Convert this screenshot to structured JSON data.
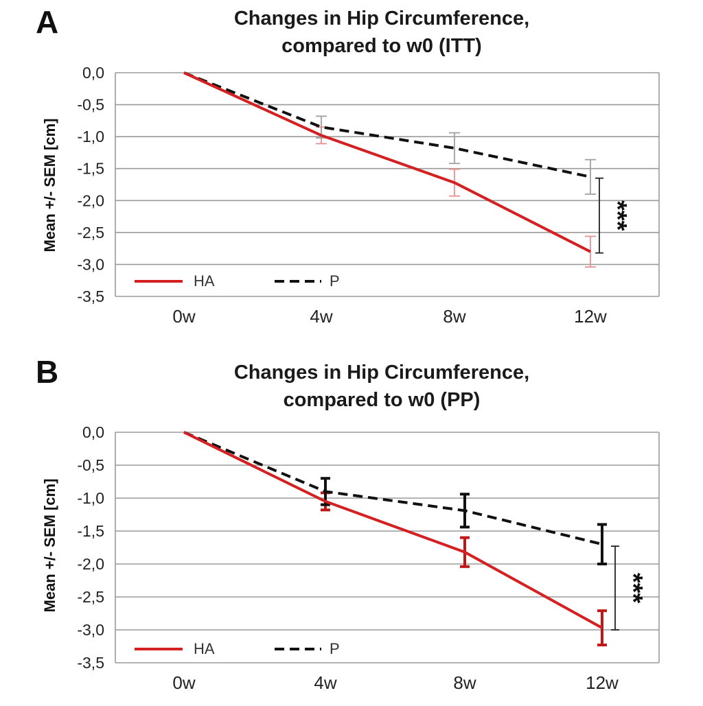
{
  "chart_data": [
    {
      "panel": "A",
      "type": "line",
      "title": "Changes in Hip Circumference,",
      "subtitle": "compared to w0 (ITT)",
      "ylabel": "Mean +/- SEM [cm]",
      "ylim": [
        -3.5,
        0
      ],
      "yticks": [
        "0,0",
        "-0,5",
        "-1,0",
        "-1,5",
        "-2,0",
        "-2,5",
        "-3,0",
        "-3,5"
      ],
      "categories": [
        "0w",
        "4w",
        "8w",
        "12w"
      ],
      "grid": true,
      "legend_position": "bottom-left",
      "series": [
        {
          "name": "HA",
          "color": "#d42020",
          "errcolor": "#e89090",
          "dash": false,
          "values": [
            0,
            -0.98,
            -1.72,
            -2.8
          ],
          "err": [
            0,
            0.13,
            0.21,
            0.24
          ]
        },
        {
          "name": "P",
          "color": "#111111",
          "errcolor": "#a0a0a0",
          "dash": true,
          "values": [
            0,
            -0.85,
            -1.18,
            -1.63
          ],
          "err": [
            0,
            0.17,
            0.24,
            0.27
          ]
        }
      ],
      "annotation": {
        "text": "***",
        "from": -1.65,
        "to": -2.82
      }
    },
    {
      "panel": "B",
      "type": "line",
      "title": "Changes in Hip Circumference,",
      "subtitle": "compared to w0 (PP)",
      "ylabel": "Mean +/- SEM [cm]",
      "ylim": [
        -3.5,
        0
      ],
      "yticks": [
        "0,0",
        "-0,5",
        "-1,0",
        "-1,5",
        "-2,0",
        "-2,5",
        "-3,0",
        "-3,5"
      ],
      "categories": [
        "0w",
        "4w",
        "8w",
        "12w"
      ],
      "grid": true,
      "legend_position": "bottom-left",
      "series": [
        {
          "name": "HA",
          "color": "#d42020",
          "errcolor": "#c01818",
          "dash": false,
          "values": [
            0,
            -1.05,
            -1.82,
            -2.97
          ],
          "err": [
            0,
            0.13,
            0.22,
            0.26
          ]
        },
        {
          "name": "P",
          "color": "#111111",
          "errcolor": "#111111",
          "dash": true,
          "values": [
            0,
            -0.9,
            -1.19,
            -1.7
          ],
          "err": [
            0,
            0.2,
            0.25,
            0.3
          ]
        }
      ],
      "annotation": {
        "text": "***",
        "from": -1.73,
        "to": -3.0
      }
    }
  ]
}
